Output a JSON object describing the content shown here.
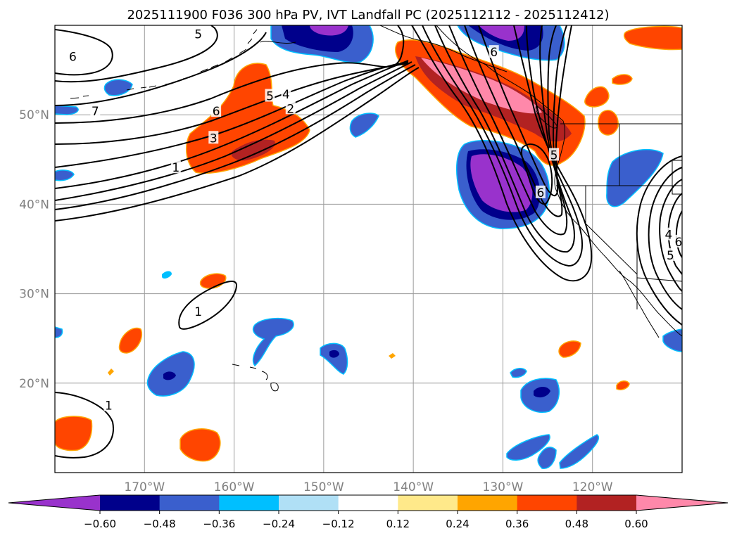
{
  "chart_data": {
    "type": "contour-map",
    "title": "2025111900 F036 300 hPa PV, IVT Landfall PC (2025112112 - 2025112412)",
    "projection": "PlateCarree",
    "lon_range": [
      -180,
      -110
    ],
    "lat_range": [
      10,
      60
    ],
    "grid": true,
    "lon_ticks": [
      {
        "value": -170,
        "label": "170°W"
      },
      {
        "value": -160,
        "label": "160°W"
      },
      {
        "value": -150,
        "label": "150°W"
      },
      {
        "value": -140,
        "label": "140°W"
      },
      {
        "value": -130,
        "label": "130°W"
      },
      {
        "value": -120,
        "label": "120°W"
      }
    ],
    "lat_ticks": [
      {
        "value": 20,
        "label": "20°N"
      },
      {
        "value": 30,
        "label": "30°N"
      },
      {
        "value": 40,
        "label": "40°N"
      },
      {
        "value": 50,
        "label": "50°N"
      }
    ],
    "colorbar": {
      "orientation": "horizontal",
      "extend": "both",
      "levels": [
        -0.6,
        -0.48,
        -0.36,
        -0.24,
        -0.12,
        0.12,
        0.24,
        0.36,
        0.48,
        0.6
      ],
      "tick_labels": [
        "−0.60",
        "−0.48",
        "−0.36",
        "−0.24",
        "−0.12",
        "0.12",
        "0.24",
        "0.36",
        "0.48",
        "0.60"
      ],
      "colors": [
        "#9932cc",
        "#00008b",
        "#3a5fcd",
        "#00bfff",
        "#b0e0f6",
        "#ffffff",
        "#ffe98a",
        "#ffa500",
        "#ff4500",
        "#b22222",
        "#ff88aa"
      ]
    },
    "pv_contour_labels": [
      {
        "text": "6",
        "lon": -178,
        "lat": 56.5
      },
      {
        "text": "5",
        "lon": -164,
        "lat": 59
      },
      {
        "text": "7",
        "lon": -175.5,
        "lat": 50.4
      },
      {
        "text": "6",
        "lon": -162,
        "lat": 50.4
      },
      {
        "text": "5",
        "lon": -156,
        "lat": 52.1
      },
      {
        "text": "4",
        "lon": -154.2,
        "lat": 52.3
      },
      {
        "text": "2",
        "lon": -153.7,
        "lat": 50.7
      },
      {
        "text": "3",
        "lon": -162.3,
        "lat": 47.4
      },
      {
        "text": "1",
        "lon": -166.5,
        "lat": 44.1
      },
      {
        "text": "1",
        "lon": -164,
        "lat": 28
      },
      {
        "text": "1",
        "lon": -174,
        "lat": 17.5
      },
      {
        "text": "6",
        "lon": -131,
        "lat": 57
      },
      {
        "text": "5",
        "lon": -124.3,
        "lat": 45.5
      },
      {
        "text": "6",
        "lon": -125.8,
        "lat": 41.3
      },
      {
        "text": "4",
        "lon": -111.5,
        "lat": 36.6
      },
      {
        "text": "6",
        "lon": -110.4,
        "lat": 35.8
      },
      {
        "text": "5",
        "lon": -111.3,
        "lat": 34.3
      }
    ]
  }
}
